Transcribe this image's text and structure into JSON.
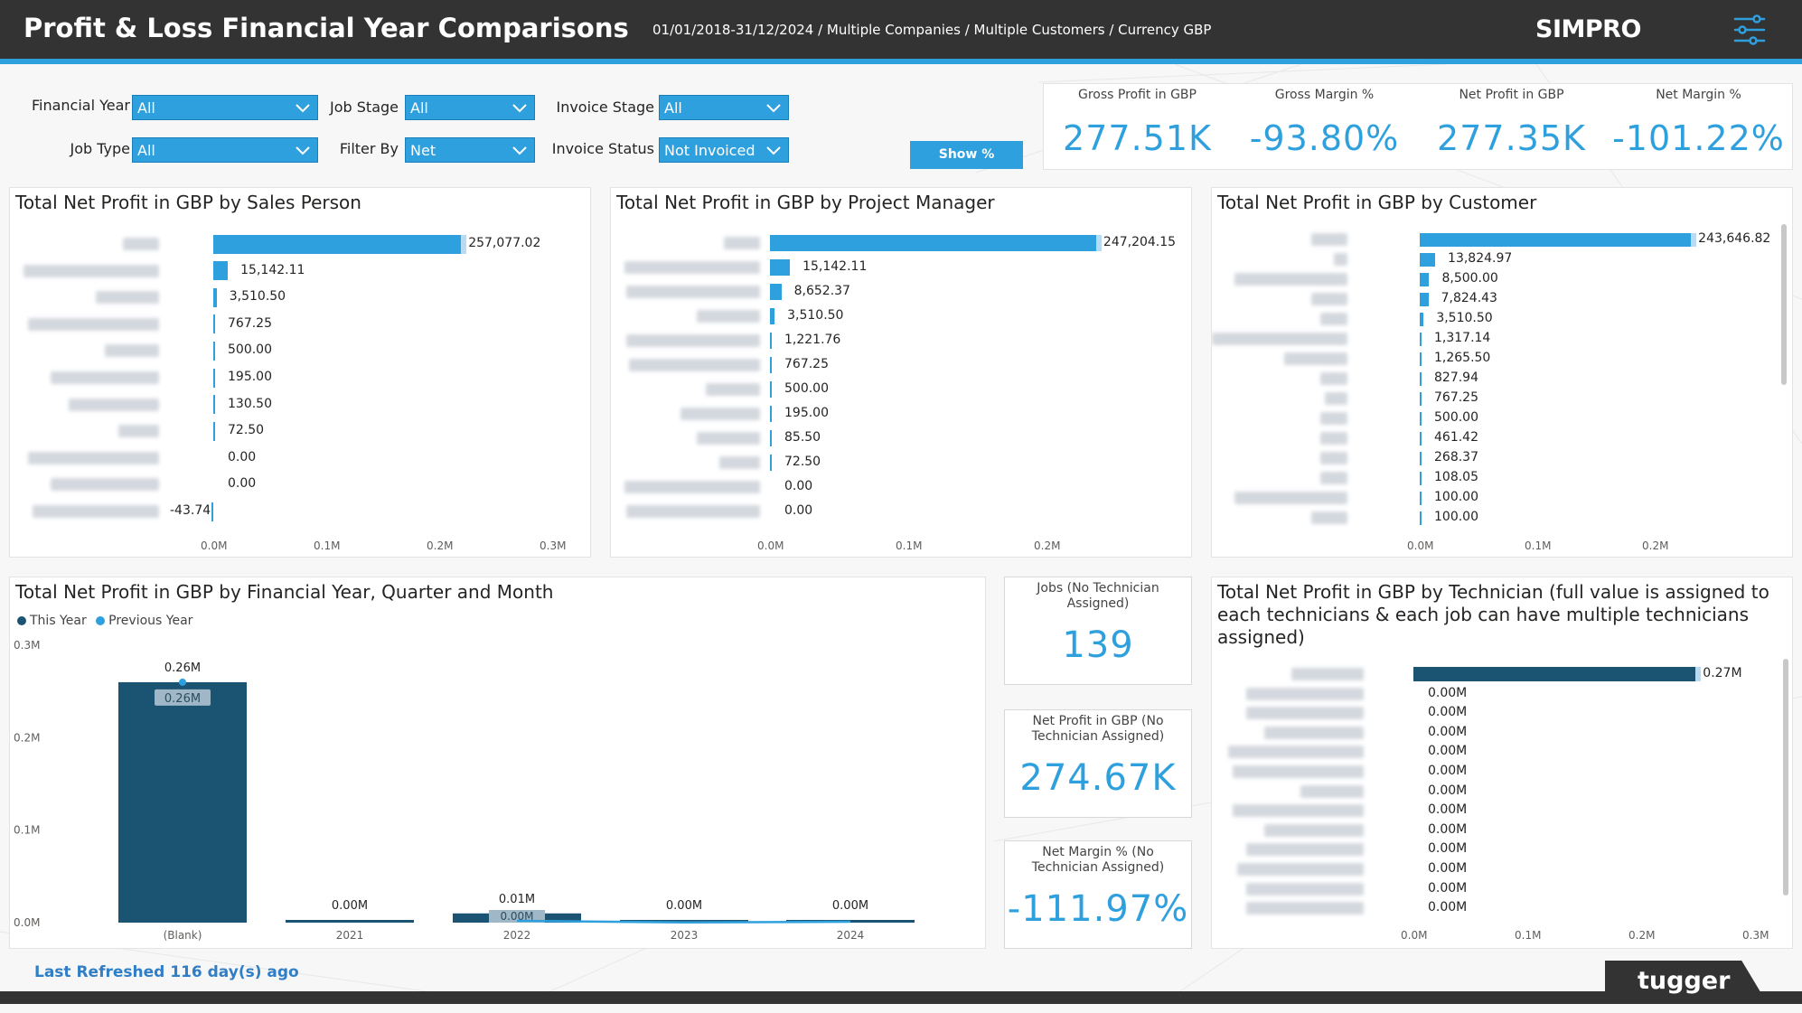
{
  "header": {
    "title": "Profit & Loss Financial Year Comparisons",
    "filters_summary": "01/01/2018-31/12/2024 / Multiple Companies / Multiple Customers / Currency GBP",
    "logo": "SIMPRO",
    "menu_icon": "sliders-icon"
  },
  "slicers": {
    "financial_year": {
      "label": "Financial Year",
      "value": "All"
    },
    "job_stage": {
      "label": "Job Stage",
      "value": "All"
    },
    "invoice_stage": {
      "label": "Invoice Stage",
      "value": "All"
    },
    "job_type": {
      "label": "Job Type",
      "value": "All"
    },
    "filter_by": {
      "label": "Filter By",
      "value": "Net"
    },
    "invoice_status": {
      "label": "Invoice Status",
      "value": "Not Invoiced"
    },
    "show_button": "Show %"
  },
  "kpis": [
    {
      "label": "Gross Profit in GBP",
      "value": "277.51K"
    },
    {
      "label": "Gross Margin %",
      "value": "-93.80%"
    },
    {
      "label": "Net Profit in GBP",
      "value": "277.35K"
    },
    {
      "label": "Net Margin %",
      "value": "-101.22%"
    }
  ],
  "sales_person": {
    "title": "Total Net Profit in GBP by Sales Person",
    "axis": [
      "0.0M",
      "0.1M",
      "0.2M",
      "0.3M"
    ],
    "rows": [
      "257,077.02",
      "15,142.11",
      "3,510.50",
      "767.25",
      "500.00",
      "195.00",
      "130.50",
      "72.50",
      "0.00",
      "0.00",
      "-43.74"
    ]
  },
  "project_manager": {
    "title": "Total Net Profit in GBP by Project Manager",
    "axis": [
      "0.0M",
      "0.1M",
      "0.2M"
    ],
    "rows": [
      "247,204.15",
      "15,142.11",
      "8,652.37",
      "3,510.50",
      "1,221.76",
      "767.25",
      "500.00",
      "195.00",
      "85.50",
      "72.50",
      "0.00",
      "0.00"
    ]
  },
  "customer": {
    "title": "Total Net Profit in GBP by Customer",
    "axis": [
      "0.0M",
      "0.1M",
      "0.2M"
    ],
    "rows": [
      "243,646.82",
      "13,824.97",
      "8,500.00",
      "7,824.43",
      "3,510.50",
      "1,317.14",
      "1,265.50",
      "827.94",
      "767.25",
      "500.00",
      "461.42",
      "268.37",
      "108.05",
      "100.00",
      "100.00"
    ]
  },
  "fy_chart": {
    "title": "Total Net Profit in GBP by Financial Year, Quarter and Month",
    "legend": [
      "This Year",
      "Previous Year"
    ],
    "y_ticks": [
      "0.3M",
      "0.2M",
      "0.1M",
      "0.0M"
    ],
    "categories": [
      "(Blank)",
      "2021",
      "2022",
      "2023",
      "2024"
    ],
    "this_year_labels": [
      "0.26M",
      "0.00M",
      "0.01M",
      "0.00M",
      "0.00M"
    ],
    "previous_year_labels": [
      "0.26M",
      "0.00M"
    ]
  },
  "chart_data": [
    {
      "type": "bar",
      "title": "Total Net Profit in GBP by Sales Person",
      "orientation": "horizontal",
      "values": [
        257077.02,
        15142.11,
        3510.5,
        767.25,
        500.0,
        195.0,
        130.5,
        72.5,
        0.0,
        0.0,
        -43.74
      ],
      "xlim": [
        0,
        300000
      ]
    },
    {
      "type": "bar",
      "title": "Total Net Profit in GBP by Project Manager",
      "orientation": "horizontal",
      "values": [
        247204.15,
        15142.11,
        8652.37,
        3510.5,
        1221.76,
        767.25,
        500.0,
        195.0,
        85.5,
        72.5,
        0.0,
        0.0
      ],
      "xlim": [
        0,
        250000
      ]
    },
    {
      "type": "bar",
      "title": "Total Net Profit in GBP by Customer",
      "orientation": "horizontal",
      "values": [
        243646.82,
        13824.97,
        8500.0,
        7824.43,
        3510.5,
        1317.14,
        1265.5,
        827.94,
        767.25,
        500.0,
        461.42,
        268.37,
        108.05,
        100.0,
        100.0
      ],
      "xlim": [
        0,
        250000
      ]
    },
    {
      "type": "bar",
      "title": "Total Net Profit in GBP by Financial Year, Quarter and Month",
      "categories": [
        "(Blank)",
        "2021",
        "2022",
        "2023",
        "2024"
      ],
      "series": [
        {
          "name": "This Year",
          "values": [
            260000,
            0,
            10000,
            0,
            0
          ]
        },
        {
          "name": "Previous Year",
          "values": [
            260000,
            null,
            0,
            10000,
            0
          ]
        }
      ],
      "ylim": [
        0,
        300000
      ]
    },
    {
      "type": "bar",
      "title": "Total Net Profit in GBP by Technician (full value is assigned to each technicians & each job can have multiple technicians assigned)",
      "orientation": "horizontal",
      "values": [
        270000,
        0,
        0,
        0,
        0,
        0,
        0,
        0,
        0,
        0,
        0,
        0,
        0
      ],
      "xlim": [
        0,
        300000
      ]
    }
  ],
  "cards": [
    {
      "label": "Jobs (No Technician Assigned)",
      "value": "139"
    },
    {
      "label": "Net Profit in GBP (No Technician Assigned)",
      "value": "274.67K"
    },
    {
      "label": "Net Margin % (No Technician Assigned)",
      "value": "-111.97%"
    }
  ],
  "technician": {
    "title": "Total Net Profit in GBP by Technician (full value is assigned to each technicians & each job can have multiple technicians assigned)",
    "axis": [
      "0.0M",
      "0.1M",
      "0.2M",
      "0.3M"
    ],
    "rows": [
      "0.27M",
      "0.00M",
      "0.00M",
      "0.00M",
      "0.00M",
      "0.00M",
      "0.00M",
      "0.00M",
      "0.00M",
      "0.00M",
      "0.00M",
      "0.00M",
      "0.00M"
    ]
  },
  "footer": {
    "refresh": "Last Refreshed 116 day(s) ago",
    "brand": "tugger"
  },
  "colors": {
    "accent": "#2fa0de",
    "dark_series": "#1b5373",
    "header": "#333333"
  }
}
